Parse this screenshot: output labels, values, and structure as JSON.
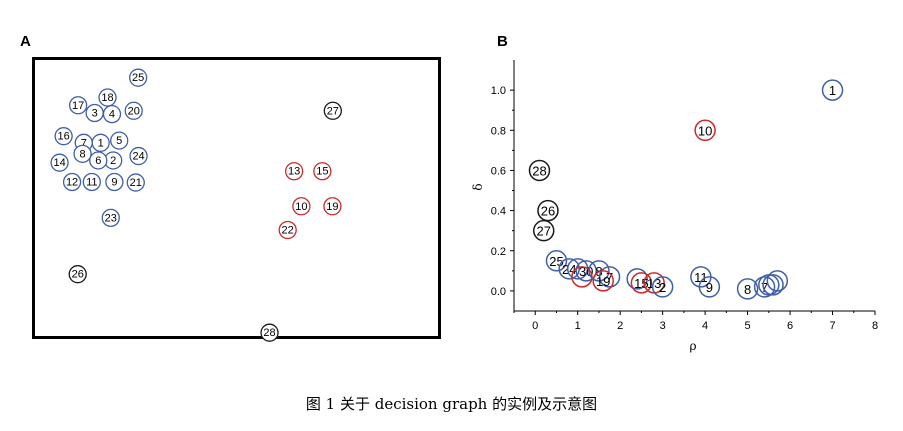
{
  "panel_a_label": "A",
  "panel_b_label": "B",
  "caption": "图 1 关于 decision graph 的实例及示意图",
  "colors": {
    "blue": "#3f5fa8",
    "red": "#cc2b2b",
    "black": "#1a1a1a",
    "axis": "#000000"
  },
  "chart_data": [
    {
      "type": "scatter",
      "panel": "A",
      "points": [
        {
          "id": "1",
          "x": 0.163,
          "y": 0.3,
          "color": "blue"
        },
        {
          "id": "2",
          "x": 0.194,
          "y": 0.364,
          "color": "blue"
        },
        {
          "id": "3",
          "x": 0.148,
          "y": 0.192,
          "color": "blue"
        },
        {
          "id": "4",
          "x": 0.191,
          "y": 0.196,
          "color": "blue"
        },
        {
          "id": "5",
          "x": 0.209,
          "y": 0.292,
          "color": "blue"
        },
        {
          "id": "6",
          "x": 0.157,
          "y": 0.364,
          "color": "blue"
        },
        {
          "id": "7",
          "x": 0.121,
          "y": 0.3,
          "color": "blue"
        },
        {
          "id": "8",
          "x": 0.118,
          "y": 0.34,
          "color": "blue"
        },
        {
          "id": "9",
          "x": 0.197,
          "y": 0.442,
          "color": "blue"
        },
        {
          "id": "10",
          "x": 0.661,
          "y": 0.53,
          "color": "red"
        },
        {
          "id": "11",
          "x": 0.141,
          "y": 0.442,
          "color": "blue"
        },
        {
          "id": "12",
          "x": 0.092,
          "y": 0.442,
          "color": "blue"
        },
        {
          "id": "13",
          "x": 0.643,
          "y": 0.403,
          "color": "red"
        },
        {
          "id": "14",
          "x": 0.061,
          "y": 0.372,
          "color": "blue"
        },
        {
          "id": "15",
          "x": 0.713,
          "y": 0.403,
          "color": "red"
        },
        {
          "id": "16",
          "x": 0.071,
          "y": 0.276,
          "color": "blue"
        },
        {
          "id": "17",
          "x": 0.107,
          "y": 0.164,
          "color": "blue"
        },
        {
          "id": "18",
          "x": 0.18,
          "y": 0.136,
          "color": "blue"
        },
        {
          "id": "19",
          "x": 0.738,
          "y": 0.53,
          "color": "red"
        },
        {
          "id": "20",
          "x": 0.245,
          "y": 0.184,
          "color": "blue"
        },
        {
          "id": "21",
          "x": 0.25,
          "y": 0.444,
          "color": "blue"
        },
        {
          "id": "22",
          "x": 0.627,
          "y": 0.616,
          "color": "red"
        },
        {
          "id": "23",
          "x": 0.188,
          "y": 0.572,
          "color": "blue"
        },
        {
          "id": "24",
          "x": 0.257,
          "y": 0.348,
          "color": "blue"
        },
        {
          "id": "25",
          "x": 0.256,
          "y": 0.064,
          "color": "blue"
        },
        {
          "id": "26",
          "x": 0.106,
          "y": 0.776,
          "color": "black"
        },
        {
          "id": "27",
          "x": 0.739,
          "y": 0.184,
          "color": "black"
        },
        {
          "id": "28",
          "x": 0.582,
          "y": 0.988,
          "color": "black"
        }
      ]
    },
    {
      "type": "scatter",
      "panel": "B",
      "xlabel": "ρ",
      "ylabel": "δ",
      "xlim": [
        -0.5,
        8
      ],
      "ylim": [
        -0.1,
        1.15
      ],
      "x_ticks": [
        "0",
        "1",
        "2",
        "3",
        "4",
        "5",
        "6",
        "7",
        "8"
      ],
      "y_ticks": [
        "0.0",
        "0.2",
        "0.4",
        "0.6",
        "0.8",
        "1.0"
      ],
      "points": [
        {
          "id": "1",
          "x": 7.0,
          "y": 1.0,
          "color": "blue"
        },
        {
          "id": "10",
          "x": 4.0,
          "y": 0.8,
          "color": "red"
        },
        {
          "id": "28",
          "x": 0.1,
          "y": 0.6,
          "color": "black"
        },
        {
          "id": "26",
          "x": 0.3,
          "y": 0.4,
          "color": "black"
        },
        {
          "id": "27",
          "x": 0.2,
          "y": 0.3,
          "color": "black"
        },
        {
          "id": "25",
          "x": 0.5,
          "y": 0.15,
          "color": "blue"
        },
        {
          "id": "24",
          "x": 0.8,
          "y": 0.11,
          "color": "blue"
        },
        {
          "id": "",
          "x": 1.0,
          "y": 0.11,
          "color": "blue"
        },
        {
          "id": "30",
          "x": 1.2,
          "y": 0.1,
          "color": "blue"
        },
        {
          "id": "",
          "x": 1.1,
          "y": 0.07,
          "color": "red"
        },
        {
          "id": "8",
          "x": 1.5,
          "y": 0.1,
          "color": "blue"
        },
        {
          "id": "7",
          "x": 1.75,
          "y": 0.07,
          "color": "blue"
        },
        {
          "id": "19",
          "x": 1.6,
          "y": 0.05,
          "color": "red"
        },
        {
          "id": "",
          "x": 2.4,
          "y": 0.06,
          "color": "blue"
        },
        {
          "id": "15",
          "x": 2.5,
          "y": 0.04,
          "color": "red"
        },
        {
          "id": "13",
          "x": 2.8,
          "y": 0.04,
          "color": "red"
        },
        {
          "id": "2",
          "x": 3.0,
          "y": 0.02,
          "color": "blue"
        },
        {
          "id": "11",
          "x": 3.9,
          "y": 0.07,
          "color": "blue"
        },
        {
          "id": "9",
          "x": 4.1,
          "y": 0.02,
          "color": "blue"
        },
        {
          "id": "8",
          "x": 5.0,
          "y": 0.01,
          "color": "blue"
        },
        {
          "id": "7",
          "x": 5.4,
          "y": 0.02,
          "color": "blue"
        },
        {
          "id": "",
          "x": 5.5,
          "y": 0.03,
          "color": "blue"
        },
        {
          "id": "",
          "x": 5.6,
          "y": 0.03,
          "color": "blue"
        },
        {
          "id": "",
          "x": 5.7,
          "y": 0.05,
          "color": "blue"
        }
      ]
    }
  ]
}
